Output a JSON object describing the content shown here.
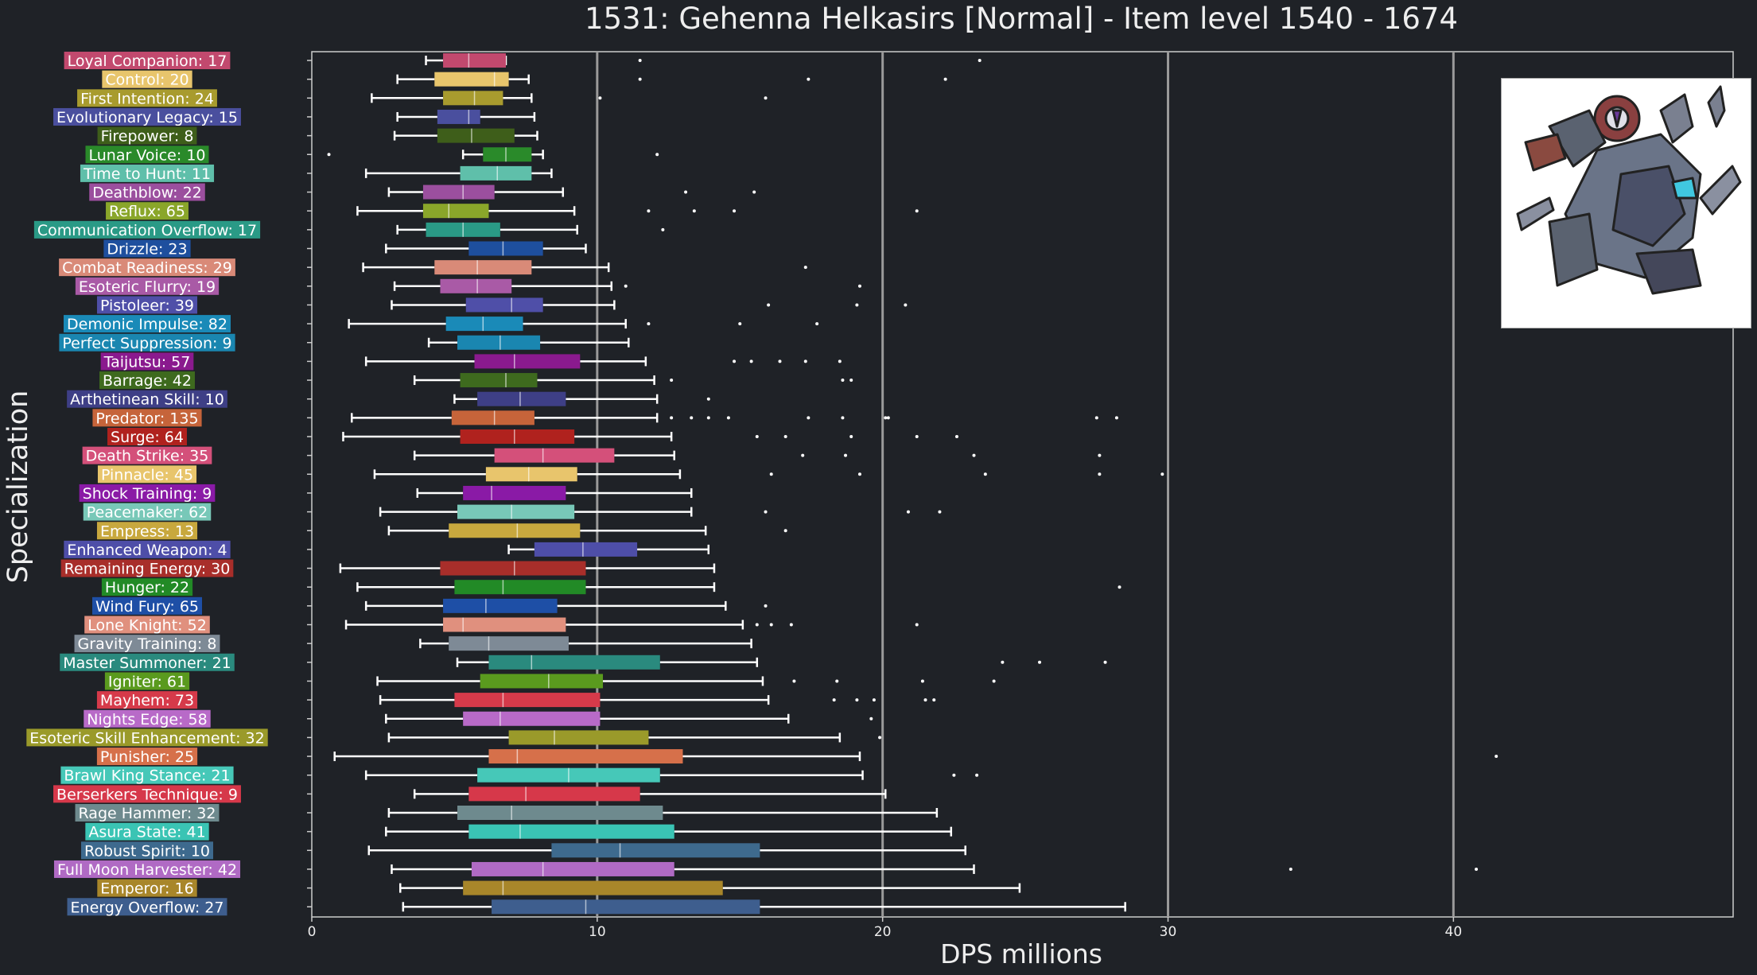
{
  "chart_data": {
    "type": "box",
    "title": "1531: Gehenna Helkasirs [Normal] - Item level 1540 - 1674",
    "xlabel": "DPS millions",
    "ylabel": "Specialization",
    "xlim": [
      0,
      49.8
    ],
    "xticks": [
      0,
      10,
      20,
      30,
      40
    ],
    "grid": "vertical lines at 10, 20, 30, 40",
    "background": "#1f2227",
    "series": [
      {
        "label": "Loyal Companion: 17",
        "color": "#c2496e",
        "min": 4.0,
        "q1": 4.6,
        "median": 5.5,
        "q3": 6.8,
        "max": 6.8,
        "outliers": [
          11.5,
          23.4
        ]
      },
      {
        "label": "Control: 20",
        "color": "#e8c56c",
        "min": 3.0,
        "q1": 4.3,
        "median": 6.4,
        "q3": 6.9,
        "max": 7.6,
        "outliers": [
          11.5,
          17.4,
          22.2
        ]
      },
      {
        "label": "First Intention: 24",
        "color": "#a89b2e",
        "min": 2.1,
        "q1": 4.6,
        "median": 5.7,
        "q3": 6.7,
        "max": 7.7,
        "outliers": [
          10.1,
          15.9
        ]
      },
      {
        "label": "Evolutionary Legacy: 15",
        "color": "#4a4f9e",
        "min": 3.0,
        "q1": 4.4,
        "median": 5.5,
        "q3": 5.9,
        "max": 7.8,
        "outliers": []
      },
      {
        "label": "Firepower: 8",
        "color": "#3e5e1a",
        "min": 2.9,
        "q1": 4.4,
        "median": 5.6,
        "q3": 7.1,
        "max": 7.9,
        "outliers": []
      },
      {
        "label": "Lunar Voice: 10",
        "color": "#2a8a2a",
        "min": 5.3,
        "q1": 6.0,
        "median": 6.8,
        "q3": 7.7,
        "max": 8.1,
        "outliers": [
          0.6,
          12.1
        ]
      },
      {
        "label": "Time to Hunt: 11",
        "color": "#5fbfaa",
        "min": 1.9,
        "q1": 5.2,
        "median": 6.5,
        "q3": 7.7,
        "max": 8.4,
        "outliers": []
      },
      {
        "label": "Deathblow: 22",
        "color": "#9b4f9e",
        "min": 2.7,
        "q1": 3.9,
        "median": 5.3,
        "q3": 6.4,
        "max": 8.8,
        "outliers": [
          13.1,
          15.5
        ]
      },
      {
        "label": "Reflux: 65",
        "color": "#8aa62a",
        "min": 1.6,
        "q1": 3.9,
        "median": 4.8,
        "q3": 6.2,
        "max": 9.2,
        "outliers": [
          11.8,
          13.4,
          14.8,
          21.2
        ]
      },
      {
        "label": "Communication Overflow: 17",
        "color": "#2a9a86",
        "min": 3.0,
        "q1": 4.0,
        "median": 5.3,
        "q3": 6.6,
        "max": 9.3,
        "outliers": [
          12.3
        ]
      },
      {
        "label": "Drizzle: 23",
        "color": "#1e4f9e",
        "min": 2.6,
        "q1": 5.5,
        "median": 6.7,
        "q3": 8.1,
        "max": 9.6,
        "outliers": []
      },
      {
        "label": "Combat Readiness: 29",
        "color": "#d98a78",
        "min": 1.8,
        "q1": 4.3,
        "median": 5.8,
        "q3": 7.7,
        "max": 10.4,
        "outliers": [
          17.3
        ]
      },
      {
        "label": "Esoteric Flurry: 19",
        "color": "#a95aa6",
        "min": 2.9,
        "q1": 4.5,
        "median": 5.8,
        "q3": 7.0,
        "max": 10.5,
        "outliers": [
          11.0,
          19.2
        ]
      },
      {
        "label": "Pistoleer: 39",
        "color": "#4f4fa8",
        "min": 2.8,
        "q1": 5.4,
        "median": 7.0,
        "q3": 8.1,
        "max": 10.6,
        "outliers": [
          16.0,
          19.1,
          20.8
        ]
      },
      {
        "label": "Demonic Impulse: 82",
        "color": "#1a8ab8",
        "min": 1.3,
        "q1": 4.7,
        "median": 6.0,
        "q3": 7.4,
        "max": 11.0,
        "outliers": [
          11.8,
          15.0,
          17.7
        ]
      },
      {
        "label": "Perfect Suppression: 9",
        "color": "#1a86b0",
        "min": 4.1,
        "q1": 5.1,
        "median": 6.6,
        "q3": 8.0,
        "max": 11.1,
        "outliers": []
      },
      {
        "label": "Taijutsu: 57",
        "color": "#8a1a8e",
        "min": 1.9,
        "q1": 5.7,
        "median": 7.1,
        "q3": 9.4,
        "max": 11.7,
        "outliers": [
          14.8,
          15.4,
          16.4,
          17.3,
          18.5
        ]
      },
      {
        "label": "Barrage: 42",
        "color": "#3e6a1e",
        "min": 3.6,
        "q1": 5.2,
        "median": 6.8,
        "q3": 7.9,
        "max": 12.0,
        "outliers": [
          12.6,
          18.6,
          18.9
        ]
      },
      {
        "label": "Arthetinean Skill: 10",
        "color": "#3e3f86",
        "min": 5.0,
        "q1": 5.8,
        "median": 7.3,
        "q3": 8.9,
        "max": 12.1,
        "outliers": [
          13.9
        ]
      },
      {
        "label": "Predator: 135",
        "color": "#c6643a",
        "min": 1.4,
        "q1": 4.9,
        "median": 6.4,
        "q3": 7.8,
        "max": 12.1,
        "outliers": [
          12.6,
          13.3,
          13.9,
          14.6,
          17.4,
          18.6,
          20.1,
          20.2,
          27.5,
          28.2
        ]
      },
      {
        "label": "Surge: 64",
        "color": "#b0221e",
        "min": 1.1,
        "q1": 5.2,
        "median": 7.1,
        "q3": 9.2,
        "max": 12.6,
        "outliers": [
          15.6,
          16.6,
          18.9,
          21.2,
          22.6
        ]
      },
      {
        "label": "Death Strike: 35",
        "color": "#d4507a",
        "min": 3.6,
        "q1": 6.4,
        "median": 8.1,
        "q3": 10.6,
        "max": 12.7,
        "outliers": [
          17.2,
          18.7,
          23.2,
          27.6
        ]
      },
      {
        "label": "Pinnacle: 45",
        "color": "#e8c56c",
        "min": 2.2,
        "q1": 6.1,
        "median": 7.6,
        "q3": 9.3,
        "max": 12.9,
        "outliers": [
          16.1,
          19.2,
          23.6,
          27.6,
          29.8
        ]
      },
      {
        "label": "Shock Training: 9",
        "color": "#8a1aa6",
        "min": 3.7,
        "q1": 5.3,
        "median": 6.3,
        "q3": 8.9,
        "max": 13.3,
        "outliers": []
      },
      {
        "label": "Peacemaker: 62",
        "color": "#78c8b8",
        "min": 2.4,
        "q1": 5.1,
        "median": 7.0,
        "q3": 9.2,
        "max": 13.3,
        "outliers": [
          15.9,
          20.9,
          22.0
        ]
      },
      {
        "label": "Empress: 13",
        "color": "#c8a83e",
        "min": 2.7,
        "q1": 4.8,
        "median": 7.2,
        "q3": 9.4,
        "max": 13.8,
        "outliers": [
          16.6
        ]
      },
      {
        "label": "Enhanced Weapon: 4",
        "color": "#4e4ea8",
        "min": 6.9,
        "q1": 7.8,
        "median": 9.5,
        "q3": 11.4,
        "max": 13.9,
        "outliers": []
      },
      {
        "label": "Remaining Energy: 30",
        "color": "#a82e2a",
        "min": 1.0,
        "q1": 4.5,
        "median": 7.1,
        "q3": 9.6,
        "max": 14.1,
        "outliers": []
      },
      {
        "label": "Hunger: 22",
        "color": "#228a26",
        "min": 1.6,
        "q1": 5.0,
        "median": 6.7,
        "q3": 9.6,
        "max": 14.1,
        "outliers": [
          28.3
        ]
      },
      {
        "label": "Wind Fury: 65",
        "color": "#1e4fa6",
        "min": 1.9,
        "q1": 4.6,
        "median": 6.1,
        "q3": 8.6,
        "max": 14.5,
        "outliers": [
          15.9
        ]
      },
      {
        "label": "Lone Knight: 52",
        "color": "#e0907e",
        "min": 1.2,
        "q1": 4.6,
        "median": 5.3,
        "q3": 8.9,
        "max": 15.1,
        "outliers": [
          15.6,
          16.1,
          16.8,
          21.2
        ]
      },
      {
        "label": "Gravity Training: 8",
        "color": "#7e8a96",
        "min": 3.8,
        "q1": 4.8,
        "median": 6.2,
        "q3": 9.0,
        "max": 15.4,
        "outliers": []
      },
      {
        "label": "Master Summoner: 21",
        "color": "#2a8a7e",
        "min": 5.1,
        "q1": 6.2,
        "median": 7.7,
        "q3": 12.2,
        "max": 15.6,
        "outliers": [
          24.2,
          25.5,
          27.8
        ]
      },
      {
        "label": "Igniter: 61",
        "color": "#5a9a1e",
        "min": 2.3,
        "q1": 5.9,
        "median": 8.3,
        "q3": 10.2,
        "max": 15.8,
        "outliers": [
          16.9,
          18.4,
          21.4,
          23.9
        ]
      },
      {
        "label": "Mayhem: 73",
        "color": "#d63a4a",
        "min": 2.4,
        "q1": 5.0,
        "median": 6.7,
        "q3": 10.1,
        "max": 16.0,
        "outliers": [
          18.3,
          19.1,
          19.7,
          21.5,
          21.8
        ]
      },
      {
        "label": "Nights Edge: 58",
        "color": "#b86ac8",
        "min": 2.6,
        "q1": 5.3,
        "median": 6.6,
        "q3": 10.1,
        "max": 16.7,
        "outliers": [
          19.6
        ]
      },
      {
        "label": "Esoteric Skill Enhancement: 32",
        "color": "#9a9a2a",
        "min": 2.7,
        "q1": 6.9,
        "median": 8.5,
        "q3": 11.8,
        "max": 18.5,
        "outliers": [
          19.9
        ]
      },
      {
        "label": "Punisher: 25",
        "color": "#d6704a",
        "min": 0.8,
        "q1": 6.2,
        "median": 7.2,
        "q3": 13.0,
        "max": 19.2,
        "outliers": [
          41.5
        ]
      },
      {
        "label": "Brawl King Stance: 21",
        "color": "#46c8b8",
        "min": 1.9,
        "q1": 5.8,
        "median": 9.0,
        "q3": 12.2,
        "max": 19.3,
        "outliers": [
          22.5,
          23.3
        ]
      },
      {
        "label": "Berserkers Technique: 9",
        "color": "#d6384a",
        "min": 3.6,
        "q1": 5.5,
        "median": 7.5,
        "q3": 11.5,
        "max": 20.1,
        "outliers": []
      },
      {
        "label": "Rage Hammer: 32",
        "color": "#6e8a8e",
        "min": 2.7,
        "q1": 5.1,
        "median": 7.0,
        "q3": 12.3,
        "max": 21.9,
        "outliers": []
      },
      {
        "label": "Asura State: 41",
        "color": "#3ac4b4",
        "min": 2.6,
        "q1": 5.5,
        "median": 7.3,
        "q3": 12.7,
        "max": 22.4,
        "outliers": []
      },
      {
        "label": "Robust Spirit: 10",
        "color": "#3e6a8e",
        "min": 2.0,
        "q1": 8.4,
        "median": 10.8,
        "q3": 15.7,
        "max": 22.9,
        "outliers": []
      },
      {
        "label": "Full Moon Harvester: 42",
        "color": "#b06ac4",
        "min": 2.8,
        "q1": 5.6,
        "median": 8.1,
        "q3": 12.7,
        "max": 23.2,
        "outliers": [
          34.3,
          40.8
        ]
      },
      {
        "label": "Emperor: 16",
        "color": "#a8862a",
        "min": 3.1,
        "q1": 5.3,
        "median": 6.7,
        "q3": 14.4,
        "max": 24.8,
        "outliers": []
      },
      {
        "label": "Energy Overflow: 27",
        "color": "#3e5e8e",
        "min": 3.2,
        "q1": 6.3,
        "median": 9.6,
        "q3": 15.7,
        "max": 28.5,
        "outliers": []
      }
    ]
  }
}
